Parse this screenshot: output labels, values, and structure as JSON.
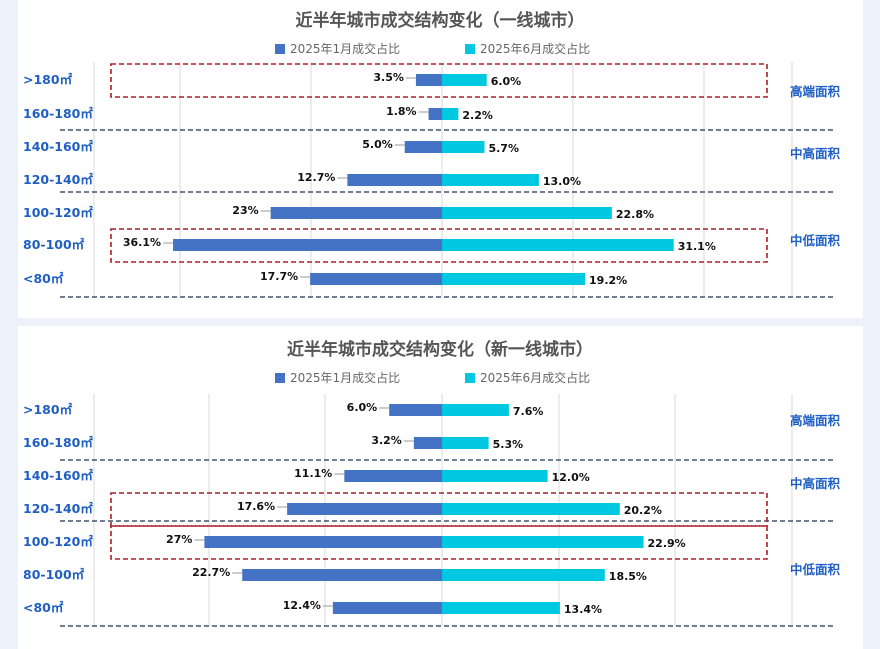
{
  "colors": {
    "jan": "#4472c4",
    "jun": "#00c8e0",
    "highlight": "#b01e2a",
    "label": "#1f5fc4"
  },
  "chart_data": [
    {
      "type": "bar",
      "orientation": "horizontal-butterfly",
      "title": "近半年城市成交结构变化（一线城市）",
      "legend_position": "top",
      "xlim": [
        -50,
        50
      ],
      "categories": [
        ">180㎡",
        "160-180㎡",
        "140-160㎡",
        "120-140㎡",
        "100-120㎡",
        "80-100㎡",
        "<80㎡"
      ],
      "series": [
        {
          "name": "2025年1月成交占比",
          "values": [
            3.5,
            1.8,
            5.0,
            12.7,
            23,
            36.1,
            17.7
          ],
          "labels": [
            "3.5%",
            "1.8%",
            "5.0%",
            "12.7%",
            "23%",
            "36.1%",
            "17.7%"
          ]
        },
        {
          "name": "2025年6月成交占比",
          "values": [
            6.0,
            2.2,
            5.7,
            13.0,
            22.8,
            31.1,
            19.2
          ],
          "labels": [
            "6.0%",
            "2.2%",
            "5.7%",
            "13.0%",
            "22.8%",
            "31.1%",
            "19.2%"
          ]
        }
      ],
      "groups": [
        {
          "label": "高端面积",
          "from": 0,
          "to": 1
        },
        {
          "label": "中高面积",
          "from": 2,
          "to": 3
        },
        {
          "label": "中低面积",
          "from": 4,
          "to": 6
        }
      ],
      "highlighted_rows": [
        [
          0,
          0
        ],
        [
          5,
          5
        ]
      ]
    },
    {
      "type": "bar",
      "orientation": "horizontal-butterfly",
      "title": "近半年城市成交结构变化（新一线城市）",
      "legend_position": "top",
      "xlim": [
        -35,
        35
      ],
      "categories": [
        ">180㎡",
        "160-180㎡",
        "140-160㎡",
        "120-140㎡",
        "100-120㎡",
        "80-100㎡",
        "<80㎡"
      ],
      "series": [
        {
          "name": "2025年1月成交占比",
          "values": [
            6.0,
            3.2,
            11.1,
            17.6,
            27,
            22.7,
            12.4
          ],
          "labels": [
            "6.0%",
            "3.2%",
            "11.1%",
            "17.6%",
            "27%",
            "22.7%",
            "12.4%"
          ]
        },
        {
          "name": "2025年6月成交占比",
          "values": [
            7.6,
            5.3,
            12.0,
            20.2,
            22.9,
            18.5,
            13.4
          ],
          "labels": [
            "7.6%",
            "5.3%",
            "12.0%",
            "20.2%",
            "22.9%",
            "18.5%",
            "13.4%"
          ]
        }
      ],
      "groups": [
        {
          "label": "高端面积",
          "from": 0,
          "to": 1
        },
        {
          "label": "中高面积",
          "from": 2,
          "to": 3
        },
        {
          "label": "中低面积",
          "from": 4,
          "to": 6
        }
      ],
      "highlighted_rows": [
        [
          3,
          3
        ],
        [
          4,
          4
        ]
      ]
    }
  ]
}
